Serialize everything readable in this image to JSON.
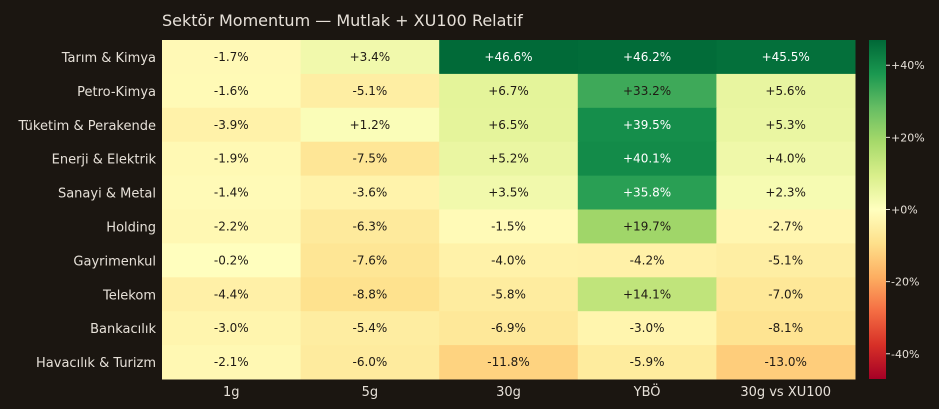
{
  "chart_data": {
    "type": "heatmap",
    "title": "Sektör Momentum — Mutlak + XU100 Relatif",
    "rows": [
      "Tarım & Kimya",
      "Petro-Kimya",
      "Tüketim & Perakende",
      "Enerji & Elektrik",
      "Sanayi & Metal",
      "Holding",
      "Gayrimenkul",
      "Telekom",
      "Bankacılık",
      "Havacılık & Turizm"
    ],
    "columns": [
      "1g",
      "5g",
      "30g",
      "YBÖ",
      "30g vs XU100"
    ],
    "values": [
      [
        -1.7,
        3.4,
        46.6,
        46.2,
        45.5
      ],
      [
        -1.6,
        -5.1,
        6.7,
        33.2,
        5.6
      ],
      [
        -3.9,
        1.2,
        6.5,
        39.5,
        5.3
      ],
      [
        -1.9,
        -7.5,
        5.2,
        40.1,
        4.0
      ],
      [
        -1.4,
        -3.6,
        3.5,
        35.8,
        2.3
      ],
      [
        -2.2,
        -6.3,
        -1.5,
        19.7,
        -2.7
      ],
      [
        -0.2,
        -7.6,
        -4.0,
        -4.2,
        -5.1
      ],
      [
        -4.4,
        -8.8,
        -5.8,
        14.1,
        -7.0
      ],
      [
        -3.0,
        -5.4,
        -6.9,
        -3.0,
        -8.1
      ],
      [
        -2.1,
        -6.0,
        -11.8,
        -5.9,
        -13.0
      ]
    ],
    "value_format": "signed percent, one decimal",
    "colormap": "RdYlGn",
    "vmin": -47,
    "vmax": 47,
    "colorbar": {
      "ticks": [
        40,
        20,
        0,
        -20,
        -40
      ],
      "tick_labels": [
        "+40%",
        "+20%",
        "+0%",
        "-20%",
        "-40%"
      ],
      "placement": "right"
    },
    "colors": {
      "background": "#1b1611",
      "text_light": "#e6e0d8",
      "cell_text_dark": "#1f1a14",
      "cell_text_light": "#ffffff"
    }
  }
}
